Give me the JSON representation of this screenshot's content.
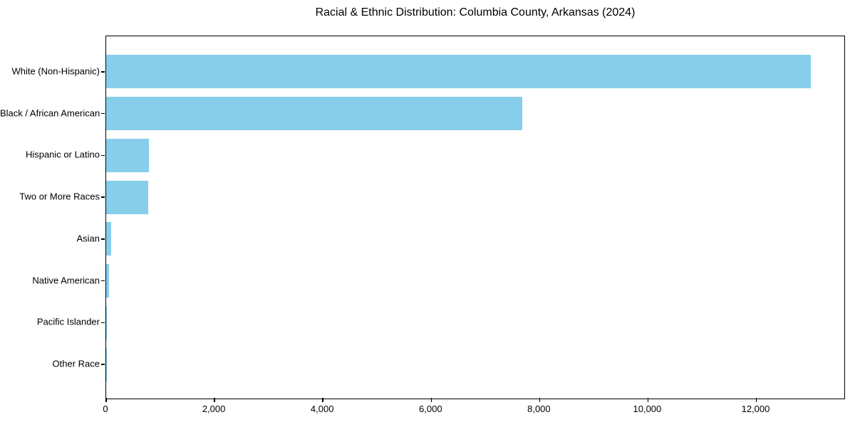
{
  "page": {
    "background_color": "#ffffff",
    "text_color": "#000000"
  },
  "chart_data": {
    "type": "bar",
    "orientation": "horizontal",
    "title": "Racial & Ethnic Distribution: Columbia County, Arkansas (2024)",
    "xlabel": "",
    "ylabel": "",
    "categories": [
      "White (Non-Hispanic)",
      "Black / African American",
      "Hispanic or Latino",
      "Two or More Races",
      "Asian",
      "Native American",
      "Pacific Islander",
      "Other Race"
    ],
    "values": [
      13000,
      7685,
      790,
      780,
      95,
      50,
      10,
      4
    ],
    "bar_color": "#87CEEB",
    "axis_color": "#000000",
    "xlim": [
      0,
      13650
    ],
    "x_ticks": [
      {
        "value": 0,
        "label": "0"
      },
      {
        "value": 2000,
        "label": "2,000"
      },
      {
        "value": 4000,
        "label": "4,000"
      },
      {
        "value": 6000,
        "label": "6,000"
      },
      {
        "value": 8000,
        "label": "8,000"
      },
      {
        "value": 10000,
        "label": "10,000"
      },
      {
        "value": 12000,
        "label": "12,000"
      }
    ],
    "grid": false,
    "legend": "none"
  }
}
